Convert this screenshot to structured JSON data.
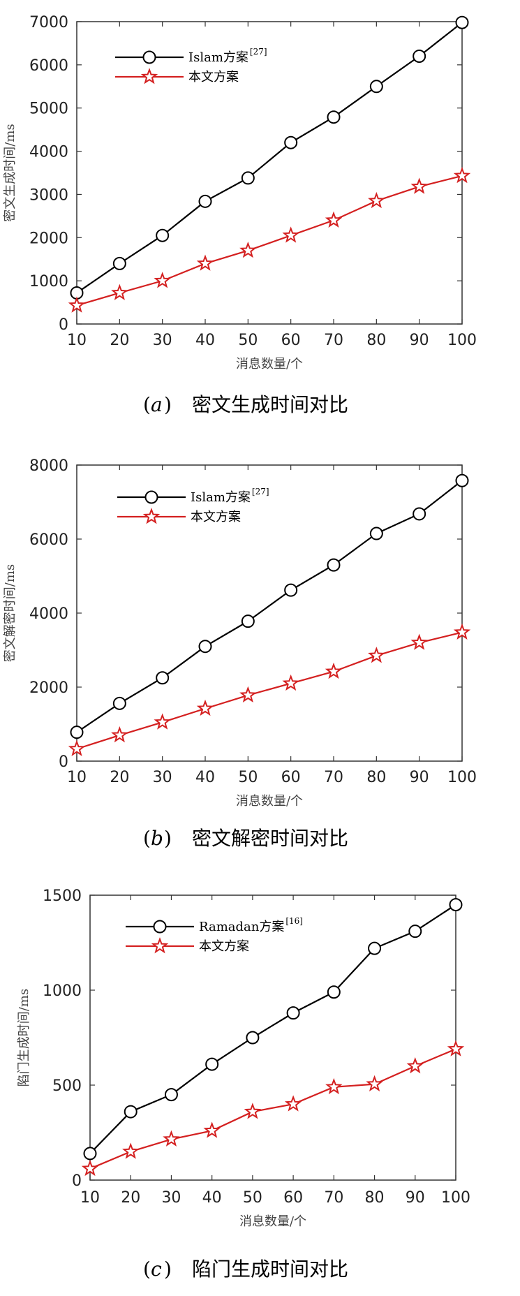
{
  "chart_data": [
    {
      "type": "line",
      "panel_letter": "a",
      "caption": "密文生成时间对比",
      "xlabel": "消息数量/个",
      "ylabel": "密文生成时间/ms",
      "x": [
        10,
        20,
        30,
        40,
        50,
        60,
        70,
        80,
        90,
        100
      ],
      "xlim": [
        10,
        100
      ],
      "ylim": [
        0,
        7000
      ],
      "xticks": [
        "10",
        "20",
        "30",
        "40",
        "50",
        "60",
        "70",
        "80",
        "90",
        "100"
      ],
      "yticks": [
        0,
        1000,
        2000,
        3000,
        4000,
        5000,
        6000,
        7000
      ],
      "grid": false,
      "legend_position": "top-left",
      "series": [
        {
          "name": "Islam方案",
          "ref": "[27]",
          "marker": "circle",
          "color": "#000000",
          "values": [
            720,
            1400,
            2050,
            2840,
            3380,
            4200,
            4790,
            5500,
            6200,
            6980
          ]
        },
        {
          "name": "本文方案",
          "ref": "",
          "marker": "star",
          "color": "#d42020",
          "values": [
            430,
            720,
            1000,
            1400,
            1700,
            2050,
            2400,
            2850,
            3180,
            3430
          ]
        }
      ]
    },
    {
      "type": "line",
      "panel_letter": "b",
      "caption": "密文解密时间对比",
      "xlabel": "消息数量/个",
      "ylabel": "密文解密时间/ms",
      "x": [
        10,
        20,
        30,
        40,
        50,
        60,
        70,
        80,
        90,
        100
      ],
      "xlim": [
        10,
        100
      ],
      "ylim": [
        0,
        8000
      ],
      "xticks": [
        "10",
        "20",
        "30",
        "40",
        "50",
        "60",
        "70",
        "80",
        "90",
        "100"
      ],
      "yticks": [
        0,
        2000,
        4000,
        6000,
        8000
      ],
      "grid": false,
      "legend_position": "top-left",
      "series": [
        {
          "name": "Islam方案",
          "ref": "[27]",
          "marker": "circle",
          "color": "#000000",
          "values": [
            780,
            1560,
            2250,
            3100,
            3780,
            4620,
            5300,
            6150,
            6680,
            7580
          ]
        },
        {
          "name": "本文方案",
          "ref": "",
          "marker": "star",
          "color": "#d42020",
          "values": [
            330,
            700,
            1050,
            1420,
            1780,
            2100,
            2420,
            2850,
            3200,
            3480
          ]
        }
      ]
    },
    {
      "type": "line",
      "panel_letter": "c",
      "caption": "陷门生成时间对比",
      "xlabel": "消息数量/个",
      "ylabel": "陷门生成时间/ms",
      "x": [
        10,
        20,
        30,
        40,
        50,
        60,
        70,
        80,
        90,
        100
      ],
      "xlim": [
        10,
        100
      ],
      "ylim": [
        0,
        1500
      ],
      "xticks": [
        "10",
        "20",
        "30",
        "40",
        "50",
        "60",
        "70",
        "80",
        "90",
        "100"
      ],
      "yticks": [
        0,
        500,
        1000,
        1500
      ],
      "grid": false,
      "legend_position": "top-left",
      "series": [
        {
          "name": "Ramadan方案",
          "ref": "[16]",
          "marker": "circle",
          "color": "#000000",
          "values": [
            140,
            360,
            450,
            610,
            750,
            880,
            990,
            1220,
            1310,
            1450
          ]
        },
        {
          "name": "本文方案",
          "ref": "",
          "marker": "star",
          "color": "#d42020",
          "values": [
            60,
            150,
            215,
            260,
            360,
            400,
            490,
            505,
            600,
            690
          ]
        }
      ]
    }
  ]
}
